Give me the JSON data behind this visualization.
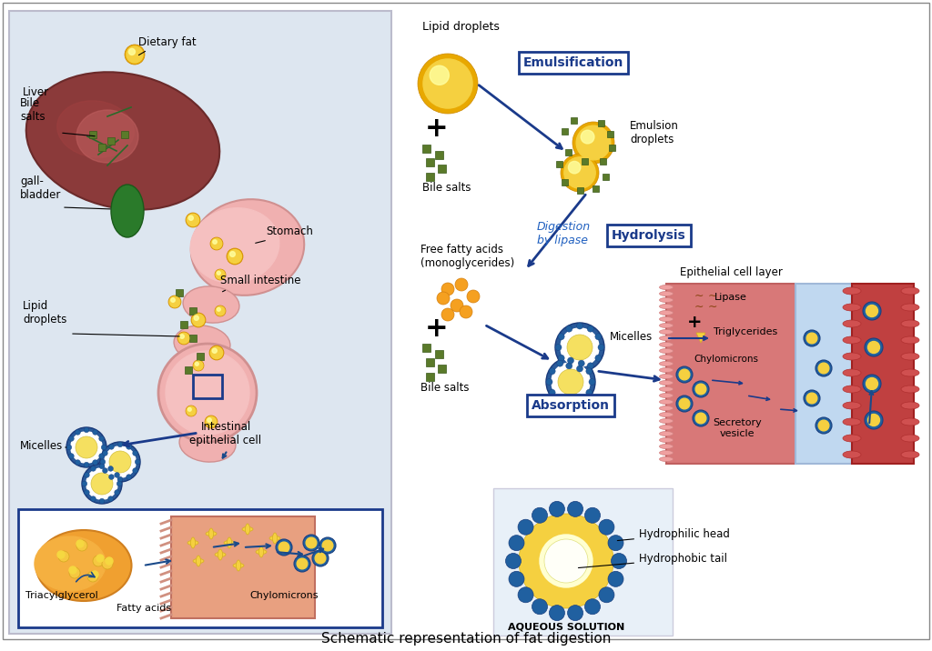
{
  "title": "Schematic representation of fat digestion",
  "bg_color": "#ffffff",
  "left_panel_bg": "#dde6f0",
  "blue_dark": "#1a3a6b",
  "blue_arrow": "#1a4a8a",
  "yellow_fat": "#f5c842",
  "orange_fatty": "#f5a020",
  "green_bile": "#5a7a2a",
  "pink_cell": "#e8a0a0",
  "red_vessel": "#c04040",
  "light_blue_vessel": "#b0c8e0",
  "labels": {
    "dietary_fat": "Dietary fat",
    "liver": "Liver",
    "bile_salts_top": "Bile\nsalts",
    "gallbladder": "gall-\nbladder",
    "stomach": "Stomach",
    "lipid_droplets": "Lipid\ndroplets",
    "small_intestine": "Small intestine",
    "micelles_left": "Micelles",
    "intestinal_epithelial": "Intestinal\nepithelial cell",
    "triacylglycerol": "Triacylglycerol",
    "fatty_acids": "Fatty acids",
    "chylomicrons_left": "Chylomicrons",
    "lipid_droplets_right": "Lipid droplets",
    "emulsification": "Emulsification",
    "emulsion_droplets": "Emulsion\ndroplets",
    "bile_salts_right1": "Bile salts",
    "free_fatty_acids": "Free fatty acids\n(monoglycerides)",
    "digestion_by_lipase": "Digestion\nby lipase",
    "hydrolysis": "Hydrolysis",
    "bile_salts_right2": "Bile salts",
    "micelles_right": "Micelles",
    "absorption": "Absorption",
    "epithelial_cell_layer": "Epithelial cell layer",
    "lipase_label": "Lipase",
    "triglycerides_label": "Triglycerides",
    "chylomicrons_right": "Chylomicrons",
    "secretory_vesicle": "Secretory\nvesicle",
    "hydrophilic_head": "Hydrophilic head",
    "hydrophobic_tail": "Hydrophobic tail",
    "aqueous_solution": "AQUEOUS SOLUTION"
  }
}
